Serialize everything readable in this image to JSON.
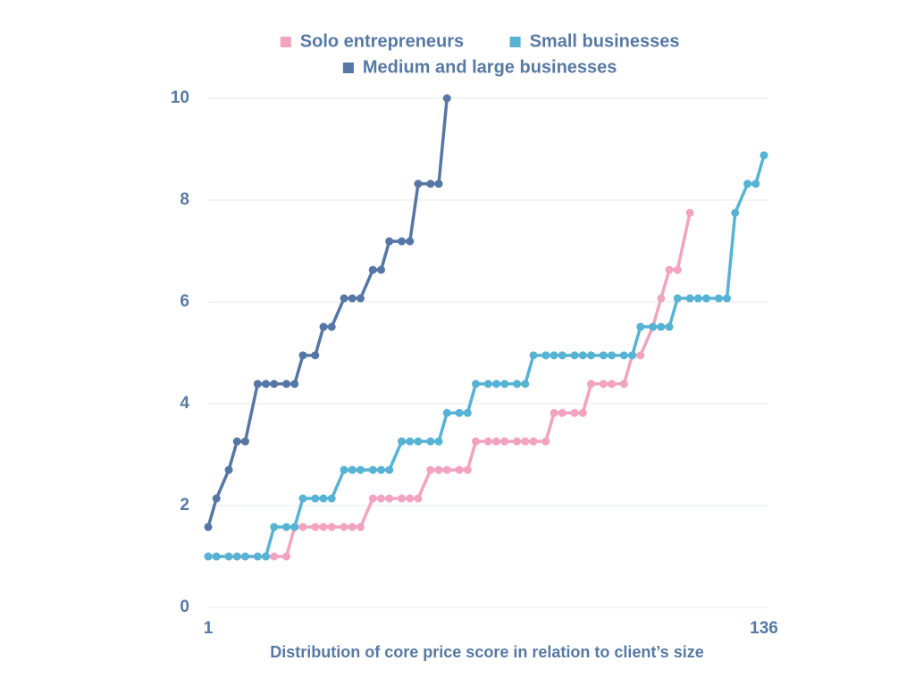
{
  "chart_data": {
    "type": "line",
    "xlabel": "Distribution of core price score in relation to client’s size",
    "xlim": [
      1,
      136
    ],
    "xticks": [
      1,
      136
    ],
    "ylim": [
      0,
      10
    ],
    "yticks": [
      0,
      2,
      4,
      6,
      8,
      10
    ],
    "grid": true,
    "legend": "top",
    "series": [
      {
        "name": "Solo entrepreneurs",
        "color": "#f2a3bf",
        "x": [
          1,
          3,
          6,
          8,
          10,
          13,
          15,
          17,
          20,
          22,
          24,
          27,
          29,
          31,
          34,
          36,
          38,
          41,
          43,
          45,
          48,
          50,
          52,
          55,
          57,
          59,
          62,
          64,
          66,
          69,
          71,
          73,
          76,
          78,
          80,
          83,
          85,
          87,
          90,
          92,
          94,
          97,
          99,
          102,
          104,
          106,
          109,
          111,
          113,
          115,
          118
        ],
        "values": [
          1,
          1,
          1,
          1,
          1,
          1,
          1,
          1,
          1,
          1.58,
          1.58,
          1.58,
          1.58,
          1.58,
          1.58,
          1.58,
          1.58,
          2.14,
          2.14,
          2.14,
          2.14,
          2.14,
          2.14,
          2.7,
          2.7,
          2.7,
          2.7,
          2.7,
          3.26,
          3.26,
          3.26,
          3.26,
          3.26,
          3.26,
          3.26,
          3.26,
          3.82,
          3.82,
          3.82,
          3.82,
          4.39,
          4.39,
          4.39,
          4.39,
          4.95,
          4.95,
          5.51,
          6.07,
          6.63,
          6.63,
          7.75
        ]
      },
      {
        "name": "Small businesses",
        "color": "#57b3d4",
        "x": [
          1,
          3,
          6,
          8,
          10,
          13,
          15,
          17,
          20,
          22,
          24,
          27,
          29,
          31,
          34,
          36,
          38,
          41,
          43,
          45,
          48,
          50,
          52,
          55,
          57,
          59,
          62,
          64,
          66,
          69,
          71,
          73,
          76,
          78,
          80,
          83,
          85,
          87,
          90,
          92,
          94,
          97,
          99,
          102,
          104,
          106,
          109,
          111,
          113,
          115,
          118,
          120,
          122,
          125,
          127,
          129,
          132,
          134,
          136
        ],
        "values": [
          1,
          1,
          1,
          1,
          1,
          1,
          1,
          1.58,
          1.58,
          1.58,
          2.14,
          2.14,
          2.14,
          2.14,
          2.7,
          2.7,
          2.7,
          2.7,
          2.7,
          2.7,
          3.26,
          3.26,
          3.26,
          3.26,
          3.26,
          3.82,
          3.82,
          3.82,
          4.39,
          4.39,
          4.39,
          4.39,
          4.39,
          4.39,
          4.95,
          4.95,
          4.95,
          4.95,
          4.95,
          4.95,
          4.95,
          4.95,
          4.95,
          4.95,
          4.95,
          5.51,
          5.51,
          5.51,
          5.51,
          6.07,
          6.07,
          6.07,
          6.07,
          6.07,
          6.07,
          7.75,
          8.32,
          8.32,
          8.88
        ]
      },
      {
        "name": "Medium and large businesses",
        "color": "#5677a5",
        "x": [
          1,
          3,
          6,
          8,
          10,
          13,
          15,
          17,
          20,
          22,
          24,
          27,
          29,
          31,
          34,
          36,
          38,
          41,
          43,
          45,
          48,
          50,
          52,
          55,
          57,
          59
        ],
        "values": [
          1.58,
          2.14,
          2.7,
          3.26,
          3.26,
          4.39,
          4.39,
          4.39,
          4.39,
          4.39,
          4.95,
          4.95,
          5.51,
          5.51,
          6.07,
          6.07,
          6.07,
          6.63,
          6.63,
          7.19,
          7.19,
          7.19,
          8.32,
          8.32,
          8.32,
          10
        ]
      }
    ]
  }
}
